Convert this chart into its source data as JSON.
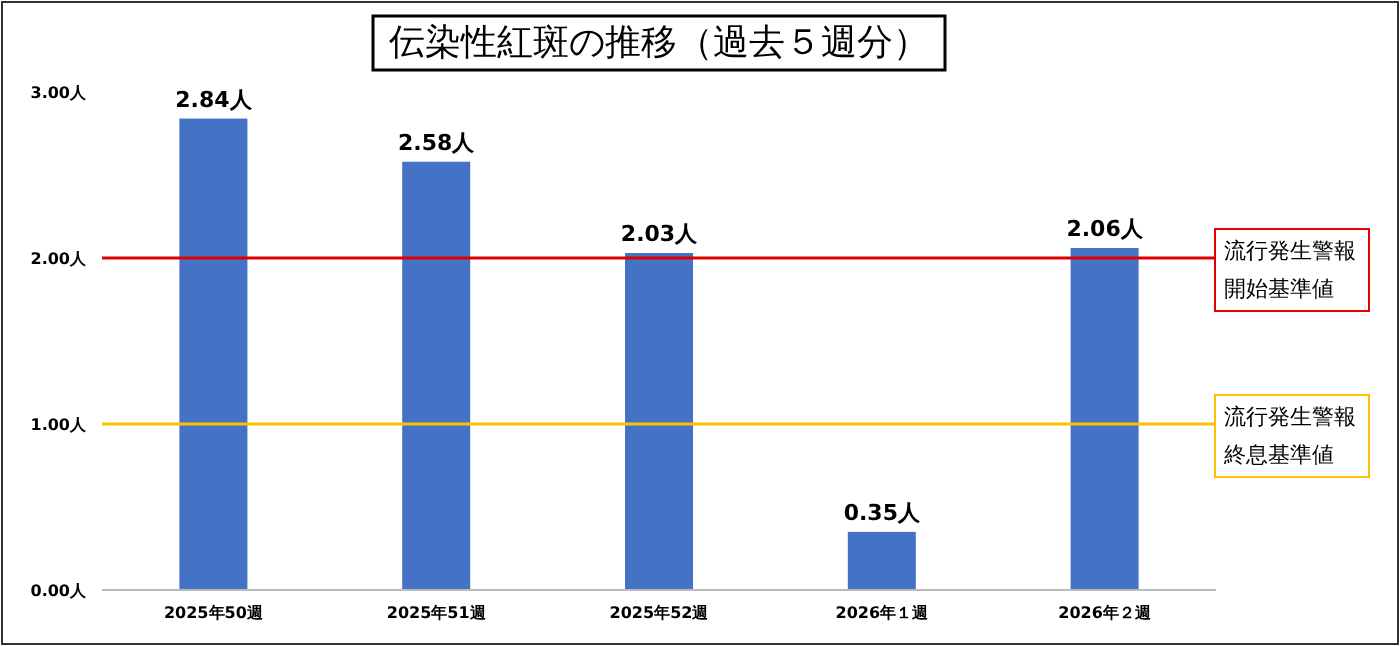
{
  "chart_data": {
    "type": "bar",
    "title": "伝染性紅斑の推移（過去５週分）",
    "categories": [
      "2025年50週",
      "2025年51週",
      "2025年52週",
      "2026年１週",
      "2026年２週"
    ],
    "values": [
      2.84,
      2.58,
      2.03,
      0.35,
      2.06
    ],
    "value_labels": [
      "2.84人",
      "2.58人",
      "2.03人",
      "0.35人",
      "2.06人"
    ],
    "color": "#4472c4",
    "ylim": [
      0,
      3
    ],
    "yticks": [
      {
        "value": 0,
        "label": "0.00人"
      },
      {
        "value": 1,
        "label": "1.00人"
      },
      {
        "value": 2,
        "label": "2.00人"
      },
      {
        "value": 3,
        "label": "3.00人"
      }
    ],
    "ref_lines": [
      {
        "axis": "y",
        "value": 2,
        "label": "流行発生警報開始基準値",
        "color": "#e00000"
      },
      {
        "axis": "y",
        "value": 1,
        "label": "流行発生警報終息基準値",
        "color": "#ffc000"
      }
    ],
    "grid": false
  }
}
